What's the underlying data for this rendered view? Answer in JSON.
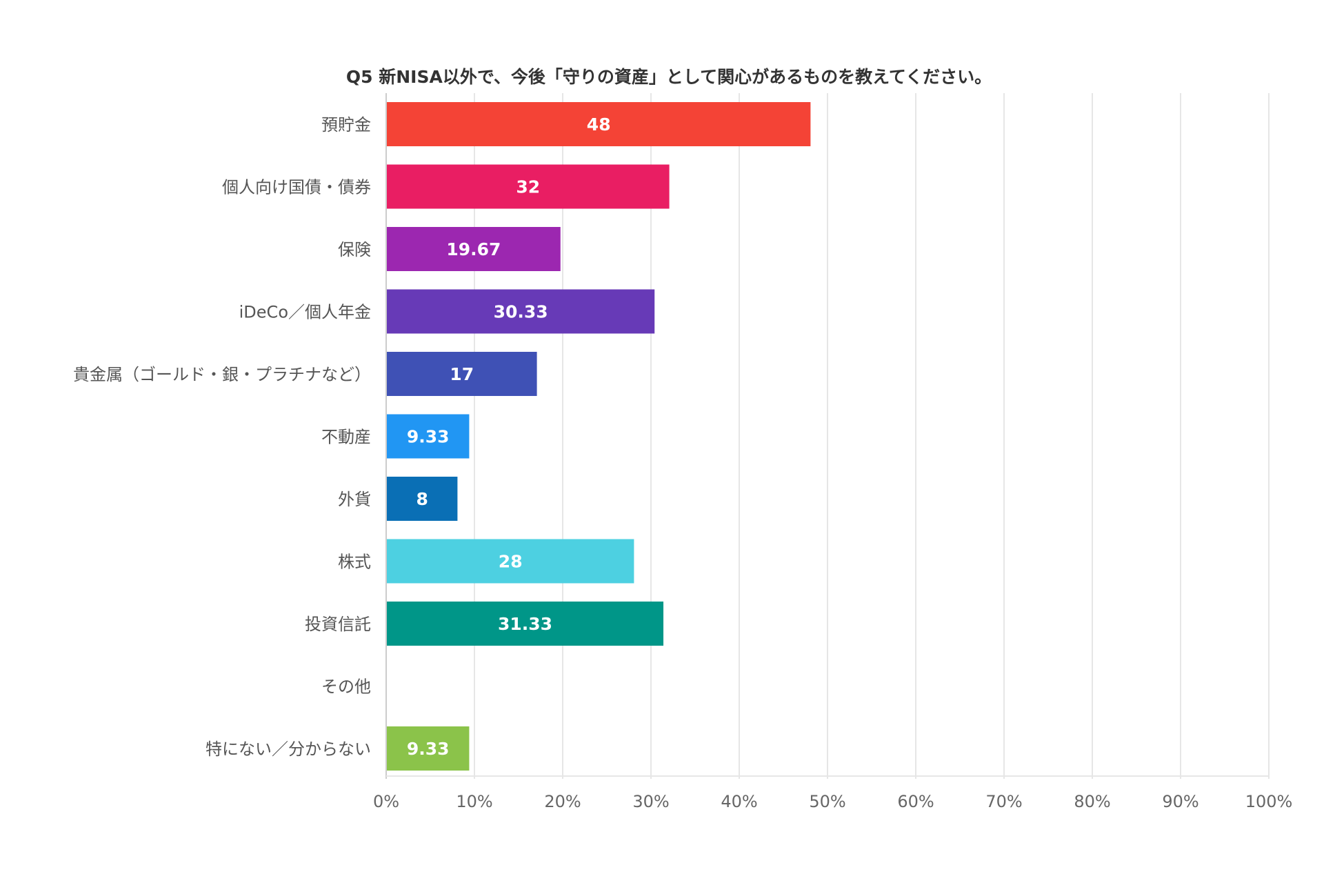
{
  "chart_data": {
    "type": "bar",
    "orientation": "horizontal",
    "title": "Q5 新NISA以外で、今後「守りの資産」として関心があるものを教えてください。",
    "categories": [
      "預貯金",
      "個人向け国債・債券",
      "保険",
      "iDeCo／個人年金",
      "貴金属（ゴールド・銀・プラチナなど）",
      "不動産",
      "外貨",
      "株式",
      "投資信託",
      "その他",
      "特にない／分からない"
    ],
    "values": [
      48,
      32,
      19.67,
      30.33,
      17,
      9.33,
      8,
      28,
      31.33,
      0,
      9.33
    ],
    "value_labels": [
      "48",
      "32",
      "19.67",
      "30.33",
      "17",
      "9.33",
      "8",
      "28",
      "31.33",
      "",
      "9.33"
    ],
    "colors": [
      "#f44336",
      "#e91e63",
      "#9c27b0",
      "#673ab7",
      "#3f51b5",
      "#2196f3",
      "#0a6fb5",
      "#4dd0e1",
      "#009688",
      "#9e9e9e",
      "#8bc34a"
    ],
    "xlim": [
      0,
      100
    ],
    "xticks": [
      0,
      10,
      20,
      30,
      40,
      50,
      60,
      70,
      80,
      90,
      100
    ],
    "xtick_labels": [
      "0%",
      "10%",
      "20%",
      "30%",
      "40%",
      "50%",
      "60%",
      "70%",
      "80%",
      "90%",
      "100%"
    ],
    "grid": true,
    "legend": "none",
    "xlabel": "",
    "ylabel": ""
  }
}
